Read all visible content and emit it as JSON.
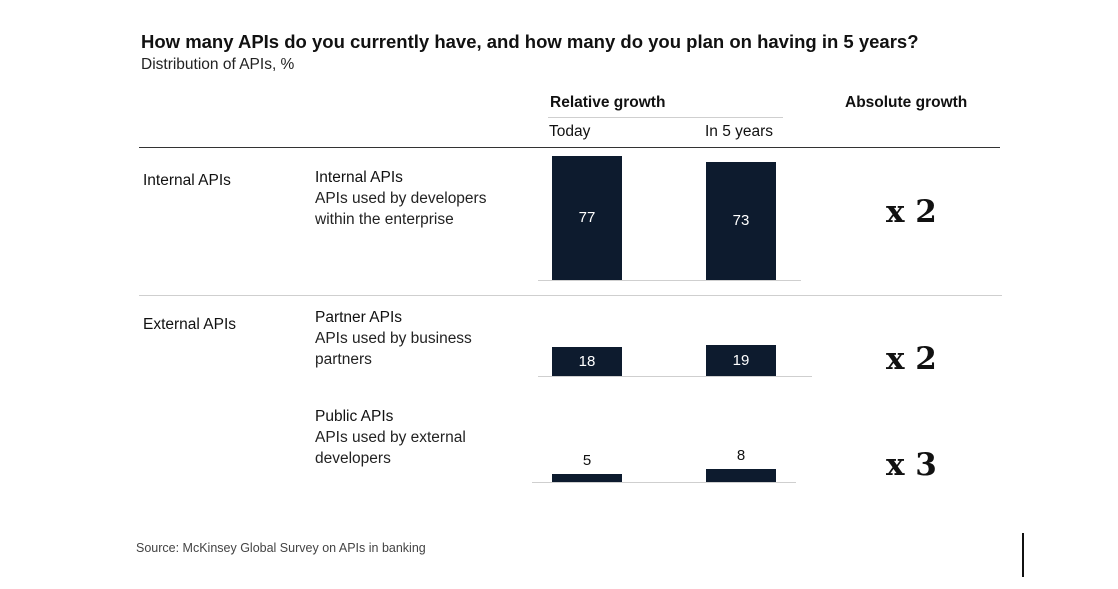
{
  "chart_data": {
    "type": "bar",
    "title": "How many APIs do you currently have, and how many do you plan on having in 5 years?",
    "subtitle": "Distribution of APIs, %",
    "headers": {
      "relative": "Relative growth",
      "today": "Today",
      "five_years": "In 5 years",
      "absolute": "Absolute growth"
    },
    "categories": [
      "Internal APIs",
      "Partner APIs",
      "Public APIs"
    ],
    "series": [
      {
        "name": "Today",
        "values": [
          77,
          18,
          5
        ]
      },
      {
        "name": "In 5 years",
        "values": [
          73,
          19,
          8
        ]
      }
    ],
    "groups": [
      {
        "label": "Internal APIs"
      },
      {
        "label": "External APIs"
      }
    ],
    "rows": [
      {
        "name": "Internal APIs",
        "description": "APIs used by developers within the enterprise",
        "today": 77,
        "five_years": 73,
        "absolute_growth": "x 2"
      },
      {
        "name": "Partner APIs",
        "description": "APIs used by business partners",
        "today": 18,
        "five_years": 19,
        "absolute_growth": "x 2"
      },
      {
        "name": "Public APIs",
        "description": "APIs used by external developers",
        "today": 5,
        "five_years": 8,
        "absolute_growth": "x 3"
      }
    ],
    "source": "Source: McKinsey Global Survey on APIs in banking",
    "colors": {
      "bar": "#0d1b2e",
      "bar_label_inside": "#ffffff",
      "bar_label_outside": "#111111"
    }
  }
}
